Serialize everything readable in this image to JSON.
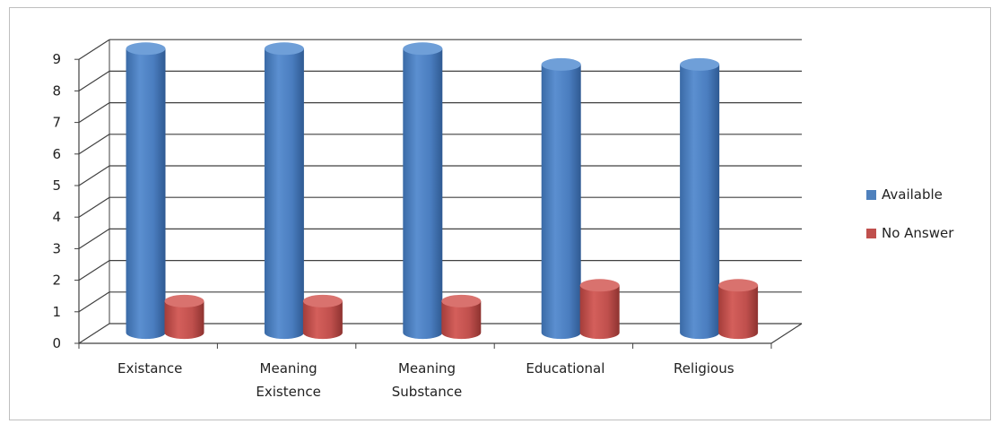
{
  "chart_data": {
    "type": "bar",
    "style": "3d-cylinder",
    "title": "",
    "xlabel": "",
    "ylabel": "",
    "ylim": [
      0,
      9
    ],
    "yticks": [
      "0",
      "1",
      "2",
      "3",
      "4",
      "5",
      "6",
      "7",
      "8",
      "9"
    ],
    "categories": [
      [
        "Existance"
      ],
      [
        "Meaning",
        "Existence"
      ],
      [
        "Meaning",
        "Substance"
      ],
      [
        "Educational"
      ],
      [
        "Religious"
      ]
    ],
    "series": [
      {
        "name": "Available",
        "color": "#4f81bd",
        "values": [
          9,
          9,
          9,
          8.5,
          8.5
        ]
      },
      {
        "name": "No Answer",
        "color": "#c0504d",
        "values": [
          1,
          1,
          1,
          1.5,
          1.5
        ]
      }
    ],
    "grid": true,
    "legend": "right"
  }
}
